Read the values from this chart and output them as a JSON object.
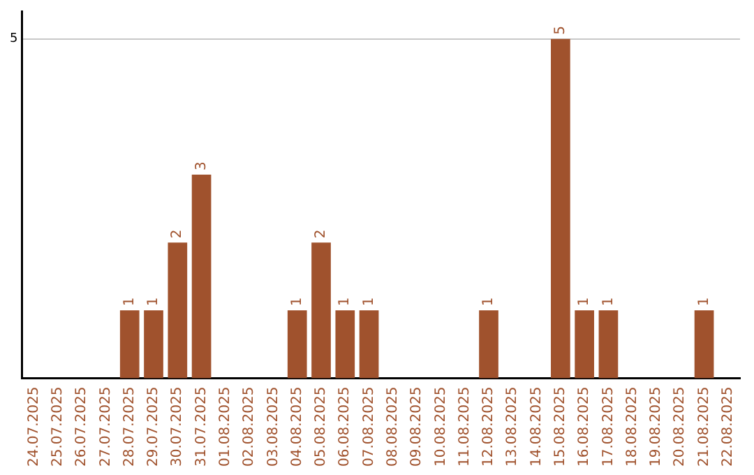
{
  "chart_data": {
    "type": "bar",
    "categories": [
      "24.07.2025",
      "25.07.2025",
      "26.07.2025",
      "27.07.2025",
      "28.07.2025",
      "29.07.2025",
      "30.07.2025",
      "31.07.2025",
      "01.08.2025",
      "02.08.2025",
      "03.08.2025",
      "04.08.2025",
      "05.08.2025",
      "06.08.2025",
      "07.08.2025",
      "08.08.2025",
      "09.08.2025",
      "10.08.2025",
      "11.08.2025",
      "12.08.2025",
      "13.08.2025",
      "14.08.2025",
      "15.08.2025",
      "16.08.2025",
      "17.08.2025",
      "18.08.2025",
      "19.08.2025",
      "20.08.2025",
      "21.08.2025",
      "22.08.2025"
    ],
    "values": [
      0,
      0,
      0,
      0,
      1,
      1,
      2,
      3,
      0,
      0,
      0,
      1,
      2,
      1,
      1,
      0,
      0,
      0,
      0,
      1,
      0,
      0,
      5,
      1,
      1,
      0,
      0,
      0,
      1,
      0
    ],
    "value_labels": [
      null,
      null,
      null,
      null,
      "1",
      "1",
      "2",
      "3",
      null,
      null,
      null,
      "1",
      "2",
      "1",
      "1",
      null,
      null,
      null,
      null,
      "1",
      null,
      null,
      "5",
      "1",
      "1",
      null,
      null,
      null,
      "1",
      null
    ],
    "color": "#a0522d",
    "ylim": [
      0,
      5.4
    ],
    "yticks": [
      5
    ],
    "grid": "y",
    "legend": false
  }
}
